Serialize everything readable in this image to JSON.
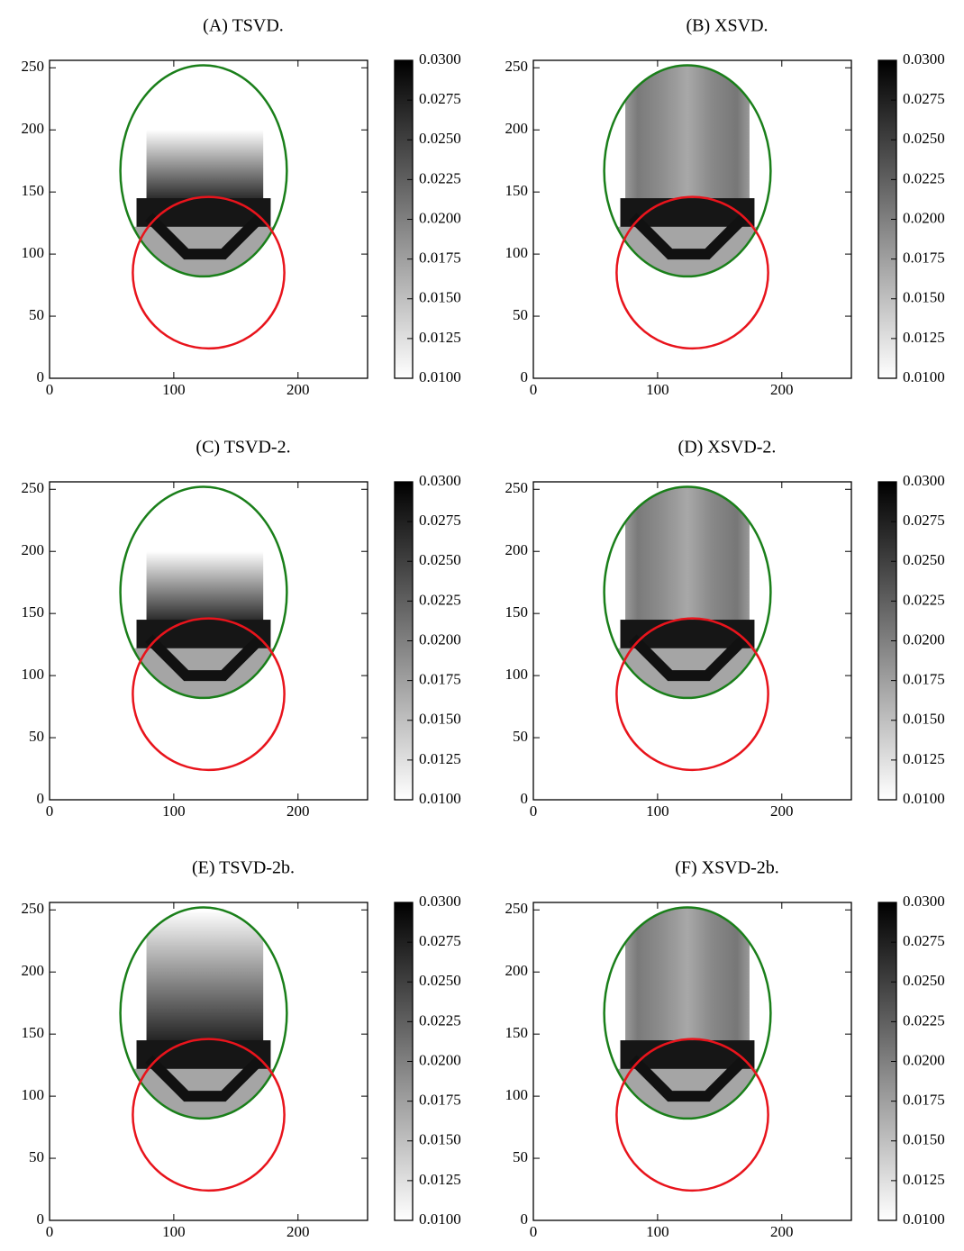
{
  "chart_data": [
    {
      "type": "image",
      "title": "(A) TSVD.",
      "xlim": [
        0,
        256
      ],
      "ylim": [
        0,
        256
      ],
      "xticks": [
        0,
        100,
        200
      ],
      "yticks": [
        0,
        50,
        100,
        150,
        200,
        250
      ],
      "colorbar": {
        "clim": [
          0.01,
          0.03
        ],
        "colormap": "gray_r",
        "ticks": [
          {
            "value": 0.01,
            "label": "0.0100"
          },
          {
            "value": 0.0125,
            "label": "0.0125"
          },
          {
            "value": 0.015,
            "label": "0.0150"
          },
          {
            "value": 0.0175,
            "label": "0.0175"
          },
          {
            "value": 0.02,
            "label": "0.0200"
          },
          {
            "value": 0.0225,
            "label": "0.0225"
          },
          {
            "value": 0.025,
            "label": "0.0250"
          },
          {
            "value": 0.0275,
            "label": "0.0275"
          },
          {
            "value": 0.03,
            "label": "0.0300"
          }
        ]
      }
    },
    {
      "type": "image",
      "title": "(B) XSVD.",
      "xlim": [
        0,
        256
      ],
      "ylim": [
        0,
        256
      ],
      "xticks": [
        0,
        100,
        200
      ],
      "yticks": [
        0,
        50,
        100,
        150,
        200,
        250
      ],
      "colorbar": {
        "clim": [
          0.01,
          0.03
        ],
        "colormap": "gray_r",
        "ticks": [
          {
            "value": 0.01,
            "label": "0.0100"
          },
          {
            "value": 0.0125,
            "label": "0.0125"
          },
          {
            "value": 0.015,
            "label": "0.0150"
          },
          {
            "value": 0.0175,
            "label": "0.0175"
          },
          {
            "value": 0.02,
            "label": "0.0200"
          },
          {
            "value": 0.0225,
            "label": "0.0225"
          },
          {
            "value": 0.025,
            "label": "0.0250"
          },
          {
            "value": 0.0275,
            "label": "0.0275"
          },
          {
            "value": 0.03,
            "label": "0.0300"
          }
        ]
      }
    },
    {
      "type": "image",
      "title": "(C) TSVD-2.",
      "xlim": [
        0,
        256
      ],
      "ylim": [
        0,
        256
      ],
      "xticks": [
        0,
        100,
        200
      ],
      "yticks": [
        0,
        50,
        100,
        150,
        200,
        250
      ],
      "colorbar": {
        "clim": [
          0.01,
          0.03
        ],
        "colormap": "gray_r",
        "ticks": [
          {
            "value": 0.01,
            "label": "0.0100"
          },
          {
            "value": 0.0125,
            "label": "0.0125"
          },
          {
            "value": 0.015,
            "label": "0.0150"
          },
          {
            "value": 0.0175,
            "label": "0.0175"
          },
          {
            "value": 0.02,
            "label": "0.0200"
          },
          {
            "value": 0.0225,
            "label": "0.0225"
          },
          {
            "value": 0.025,
            "label": "0.0250"
          },
          {
            "value": 0.0275,
            "label": "0.0275"
          },
          {
            "value": 0.03,
            "label": "0.0300"
          }
        ]
      }
    },
    {
      "type": "image",
      "title": "(D) XSVD-2.",
      "xlim": [
        0,
        256
      ],
      "ylim": [
        0,
        256
      ],
      "xticks": [
        0,
        100,
        200
      ],
      "yticks": [
        0,
        50,
        100,
        150,
        200,
        250
      ],
      "colorbar": {
        "clim": [
          0.01,
          0.03
        ],
        "colormap": "gray_r",
        "ticks": [
          {
            "value": 0.01,
            "label": "0.0100"
          },
          {
            "value": 0.0125,
            "label": "0.0125"
          },
          {
            "value": 0.015,
            "label": "0.0150"
          },
          {
            "value": 0.0175,
            "label": "0.0175"
          },
          {
            "value": 0.02,
            "label": "0.0200"
          },
          {
            "value": 0.0225,
            "label": "0.0225"
          },
          {
            "value": 0.025,
            "label": "0.0250"
          },
          {
            "value": 0.0275,
            "label": "0.0275"
          },
          {
            "value": 0.03,
            "label": "0.0300"
          }
        ]
      }
    },
    {
      "type": "image",
      "title": "(E) TSVD-2b.",
      "xlim": [
        0,
        256
      ],
      "ylim": [
        0,
        256
      ],
      "xticks": [
        0,
        100,
        200
      ],
      "yticks": [
        0,
        50,
        100,
        150,
        200,
        250
      ],
      "colorbar": {
        "clim": [
          0.01,
          0.03
        ],
        "colormap": "gray_r",
        "ticks": [
          {
            "value": 0.01,
            "label": "0.0100"
          },
          {
            "value": 0.0125,
            "label": "0.0125"
          },
          {
            "value": 0.015,
            "label": "0.0150"
          },
          {
            "value": 0.0175,
            "label": "0.0175"
          },
          {
            "value": 0.02,
            "label": "0.0200"
          },
          {
            "value": 0.0225,
            "label": "0.0225"
          },
          {
            "value": 0.025,
            "label": "0.0250"
          },
          {
            "value": 0.0275,
            "label": "0.0275"
          },
          {
            "value": 0.03,
            "label": "0.0300"
          }
        ]
      }
    },
    {
      "type": "image",
      "title": "(F) XSVD-2b.",
      "xlim": [
        0,
        256
      ],
      "ylim": [
        0,
        256
      ],
      "xticks": [
        0,
        100,
        200
      ],
      "yticks": [
        0,
        50,
        100,
        150,
        200,
        250
      ],
      "colorbar": {
        "clim": [
          0.01,
          0.03
        ],
        "colormap": "gray_r",
        "ticks": [
          {
            "value": 0.01,
            "label": "0.0100"
          },
          {
            "value": 0.0125,
            "label": "0.0125"
          },
          {
            "value": 0.015,
            "label": "0.0150"
          },
          {
            "value": 0.0175,
            "label": "0.0175"
          },
          {
            "value": 0.02,
            "label": "0.0200"
          },
          {
            "value": 0.0225,
            "label": "0.0225"
          },
          {
            "value": 0.025,
            "label": "0.0250"
          },
          {
            "value": 0.0275,
            "label": "0.0275"
          },
          {
            "value": 0.03,
            "label": "0.0300"
          }
        ]
      }
    }
  ]
}
